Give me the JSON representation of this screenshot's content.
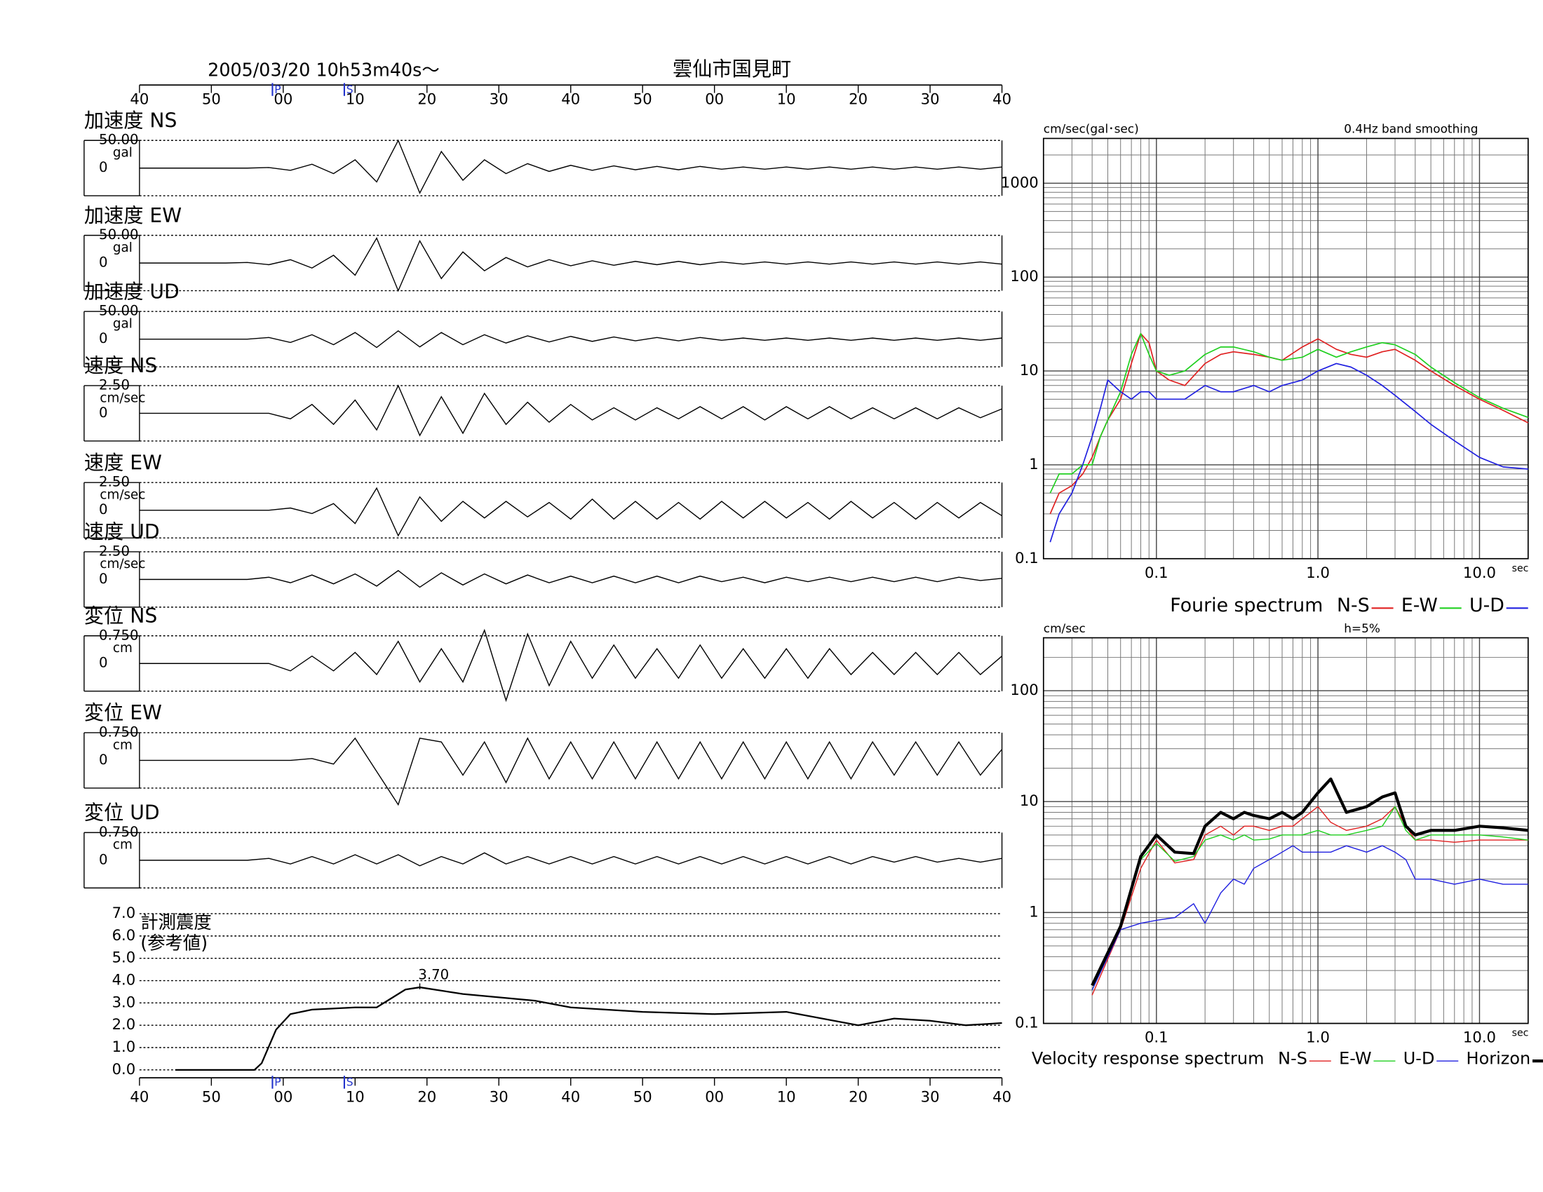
{
  "header": {
    "datetime": "2005/03/20  10h53m40s〜",
    "location": "雲仙市国見町"
  },
  "chart_data": [
    {
      "type": "waveform",
      "xlim": [
        40,
        160
      ],
      "xticks": [
        40,
        50,
        {
          "value": 60,
          "label": "00"
        },
        {
          "value": 70,
          "label": "10"
        },
        {
          "value": 80,
          "label": "20"
        },
        {
          "value": 90,
          "label": "30"
        },
        {
          "value": 100,
          "label": "40"
        },
        {
          "value": 110,
          "label": "50"
        },
        {
          "value": 120,
          "label": "00"
        },
        {
          "value": 130,
          "label": "10"
        },
        {
          "value": 140,
          "label": "20"
        },
        {
          "value": 150,
          "label": "30"
        },
        {
          "value": 160,
          "label": "40"
        }
      ],
      "phases": [
        {
          "value": 58.5,
          "label": "P"
        },
        {
          "value": 68.5,
          "label": "S"
        }
      ],
      "x": [
        40,
        43,
        46,
        49,
        52,
        55,
        58,
        61,
        64,
        67,
        70,
        73,
        76,
        79,
        82,
        85,
        88,
        91,
        94,
        97,
        100,
        103,
        106,
        109,
        112,
        115,
        118,
        121,
        124,
        127,
        130,
        133,
        136,
        139,
        142,
        145,
        148,
        151,
        154,
        157,
        160
      ],
      "series": [
        {
          "name": "加速度 NS",
          "unit": "gal",
          "color": "#000000",
          "ylim": [
            -50,
            50
          ],
          "yticks": [
            {
              "value": 50,
              "label": "50.00"
            },
            0
          ],
          "values": [
            0,
            0,
            0,
            0,
            0,
            0,
            1,
            -4,
            7,
            -10,
            15,
            -25,
            50,
            -45,
            30,
            -22,
            15,
            -10,
            8,
            -6,
            5,
            -4,
            4,
            -3,
            3,
            -3,
            3,
            -2,
            2,
            -2,
            2,
            -2,
            2,
            -2,
            2,
            -2,
            2,
            -2,
            2,
            -2,
            2
          ]
        },
        {
          "name": "加速度 EW",
          "unit": "gal",
          "color": "#000000",
          "ylim": [
            -50,
            50
          ],
          "yticks": [
            {
              "value": 50,
              "label": "50.00"
            },
            0
          ],
          "values": [
            0,
            0,
            0,
            0,
            0,
            1,
            -3,
            6,
            -9,
            14,
            -22,
            45,
            -50,
            40,
            -28,
            20,
            -14,
            10,
            -7,
            6,
            -5,
            4,
            -4,
            3,
            -3,
            3,
            -3,
            2,
            -2,
            2,
            -2,
            2,
            -2,
            2,
            -2,
            2,
            -2,
            2,
            -2,
            2,
            -2
          ]
        },
        {
          "name": "加速度 UD",
          "unit": "gal",
          "color": "#000000",
          "ylim": [
            -50,
            50
          ],
          "yticks": [
            {
              "value": 50,
              "label": "50.00"
            },
            0
          ],
          "values": [
            0,
            0,
            0,
            0,
            0,
            0,
            3,
            -6,
            8,
            -10,
            12,
            -15,
            15,
            -14,
            12,
            -10,
            8,
            -7,
            6,
            -5,
            5,
            -4,
            4,
            -3,
            3,
            -3,
            3,
            -2,
            2,
            -2,
            2,
            -2,
            2,
            -2,
            2,
            -2,
            2,
            -2,
            2,
            -2,
            2
          ]
        },
        {
          "name": "速度 NS",
          "unit": "cm/sec",
          "color": "#000000",
          "ylim": [
            -2.5,
            2.5
          ],
          "yticks": [
            {
              "value": 2.5,
              "label": "2.50"
            },
            0
          ],
          "values": [
            0,
            0,
            0,
            0,
            0,
            0,
            0,
            -0.5,
            0.8,
            -1,
            1.2,
            -1.5,
            2.5,
            -2,
            1.5,
            -1.8,
            1.8,
            -1,
            1,
            -0.8,
            0.8,
            -0.6,
            0.5,
            -0.6,
            0.5,
            -0.5,
            0.6,
            -0.5,
            0.6,
            -0.6,
            0.6,
            -0.5,
            0.6,
            -0.5,
            0.5,
            -0.5,
            0.5,
            -0.5,
            0.5,
            -0.4,
            0.4
          ]
        },
        {
          "name": "速度 EW",
          "unit": "cm/sec",
          "color": "#000000",
          "ylim": [
            -2.5,
            2.5
          ],
          "yticks": [
            {
              "value": 2.5,
              "label": "2.50"
            },
            0
          ],
          "values": [
            0,
            0,
            0,
            0,
            0,
            0,
            0,
            0.2,
            -0.3,
            0.6,
            -1.2,
            2,
            -2.3,
            1.2,
            -1,
            0.8,
            -0.7,
            0.8,
            -0.6,
            0.7,
            -0.8,
            1,
            -0.8,
            0.8,
            -0.8,
            0.7,
            -0.8,
            0.8,
            -0.7,
            0.8,
            -0.7,
            0.7,
            -0.8,
            0.8,
            -0.7,
            0.7,
            -0.8,
            0.7,
            -0.7,
            0.7,
            -0.5
          ]
        },
        {
          "name": "速度 UD",
          "unit": "cm/sec",
          "color": "#000000",
          "ylim": [
            -2.5,
            2.5
          ],
          "yticks": [
            {
              "value": 2.5,
              "label": "2.50"
            },
            0
          ],
          "values": [
            0,
            0,
            0,
            0,
            0,
            0,
            0.2,
            -0.3,
            0.4,
            -0.4,
            0.5,
            -0.6,
            0.8,
            -0.7,
            0.6,
            -0.5,
            0.5,
            -0.4,
            0.4,
            -0.3,
            0.3,
            -0.3,
            0.3,
            -0.3,
            0.3,
            -0.3,
            0.3,
            -0.2,
            0.2,
            -0.3,
            0.2,
            -0.2,
            0.2,
            -0.2,
            0.2,
            -0.2,
            0.2,
            -0.2,
            0.2,
            -0.1,
            0.1
          ]
        },
        {
          "name": "変位 NS",
          "unit": "cm",
          "color": "#000000",
          "ylim": [
            -0.75,
            0.75
          ],
          "yticks": [
            {
              "value": 0.75,
              "label": "0.750"
            },
            0
          ],
          "values": [
            0,
            0,
            0,
            0,
            0,
            0,
            0,
            -0.2,
            0.2,
            -0.2,
            0.3,
            -0.3,
            0.6,
            -0.5,
            0.4,
            -0.5,
            0.9,
            -1,
            0.8,
            -0.6,
            0.6,
            -0.4,
            0.5,
            -0.4,
            0.4,
            -0.4,
            0.5,
            -0.4,
            0.4,
            -0.4,
            0.4,
            -0.4,
            0.4,
            -0.3,
            0.3,
            -0.3,
            0.3,
            -0.3,
            0.3,
            -0.3,
            0.2
          ]
        },
        {
          "name": "変位 EW",
          "unit": "cm",
          "color": "#000000",
          "ylim": [
            -0.75,
            0.75
          ],
          "yticks": [
            {
              "value": 0.75,
              "label": "0.750"
            },
            0
          ],
          "values": [
            0,
            0,
            0,
            0,
            0,
            0,
            0,
            0,
            0.05,
            -0.1,
            0.6,
            -0.3,
            -1.2,
            0.6,
            0.5,
            -0.4,
            0.5,
            -0.6,
            0.6,
            -0.5,
            0.5,
            -0.5,
            0.5,
            -0.5,
            0.5,
            -0.5,
            0.5,
            -0.5,
            0.5,
            -0.5,
            0.5,
            -0.5,
            0.5,
            -0.5,
            0.5,
            -0.4,
            0.5,
            -0.4,
            0.5,
            -0.4,
            0.3
          ]
        },
        {
          "name": "変位 UD",
          "unit": "cm",
          "color": "#000000",
          "ylim": [
            -0.75,
            0.75
          ],
          "yticks": [
            {
              "value": 0.75,
              "label": "0.750"
            },
            0
          ],
          "values": [
            0,
            0,
            0,
            0,
            0,
            0,
            0.05,
            -0.1,
            0.1,
            -0.1,
            0.15,
            -0.1,
            0.15,
            -0.15,
            0.1,
            -0.1,
            0.2,
            -0.1,
            0.1,
            -0.1,
            0.1,
            -0.1,
            0.1,
            -0.1,
            0.1,
            -0.1,
            0.1,
            -0.1,
            0.1,
            -0.1,
            0.1,
            -0.1,
            0.1,
            -0.1,
            0.1,
            -0.05,
            0.1,
            -0.05,
            0.05,
            -0.05,
            0.05
          ]
        }
      ]
    },
    {
      "type": "line",
      "title": "計測震度",
      "subtitle": "(参考値)",
      "xlim": [
        40,
        160
      ],
      "xticks": [
        40,
        50,
        {
          "value": 60,
          "label": "00"
        },
        {
          "value": 70,
          "label": "10"
        },
        {
          "value": 80,
          "label": "20"
        },
        {
          "value": 90,
          "label": "30"
        },
        {
          "value": 100,
          "label": "40"
        },
        {
          "value": 110,
          "label": "50"
        },
        {
          "value": 120,
          "label": "00"
        },
        {
          "value": 130,
          "label": "10"
        },
        {
          "value": 140,
          "label": "20"
        },
        {
          "value": 150,
          "label": "30"
        },
        {
          "value": 160,
          "label": "40"
        }
      ],
      "phases": [
        {
          "value": 58.5,
          "label": "P"
        },
        {
          "value": 68.5,
          "label": "S"
        }
      ],
      "ylim": [
        0,
        7
      ],
      "yticks": [
        {
          "value": 0,
          "label": "0.0"
        },
        {
          "value": 1,
          "label": "1.0"
        },
        {
          "value": 2,
          "label": "2.0"
        },
        {
          "value": 3,
          "label": "3.0"
        },
        {
          "value": 4,
          "label": "4.0"
        },
        {
          "value": 5,
          "label": "5.0"
        },
        {
          "value": 6,
          "label": "6.0"
        },
        {
          "value": 7,
          "label": "7.0"
        }
      ],
      "grid": true,
      "color": "#000000",
      "x": [
        45,
        56,
        57,
        59,
        61,
        64,
        70,
        73,
        77,
        79,
        85,
        95,
        100,
        110,
        120,
        130,
        140,
        145,
        150,
        155,
        160
      ],
      "values": [
        0,
        0,
        0.3,
        1.8,
        2.5,
        2.7,
        2.8,
        2.8,
        3.6,
        3.7,
        3.4,
        3.1,
        2.8,
        2.6,
        2.5,
        2.6,
        2,
        2.3,
        2.2,
        2,
        2.1
      ],
      "annotation": {
        "x": 79,
        "y": 3.7,
        "label": "3.70"
      }
    },
    {
      "type": "loglog",
      "title": "Fourie spectrum",
      "y_label": "cm/sec(gal･sec)",
      "note": "0.4Hz band smoothing",
      "x_label": "sec",
      "xlim": [
        0.02,
        20
      ],
      "xticks": [
        0.1,
        {
          "value": 1,
          "label": "1.0"
        },
        {
          "value": 10,
          "label": "10.0"
        }
      ],
      "ylim": [
        0.1,
        3000
      ],
      "yticks": [
        0.1,
        1,
        10,
        100,
        1000
      ],
      "grid": true,
      "x": [
        0.022,
        0.025,
        0.03,
        0.035,
        0.04,
        0.045,
        0.05,
        0.06,
        0.07,
        0.08,
        0.09,
        0.1,
        0.12,
        0.15,
        0.2,
        0.25,
        0.3,
        0.4,
        0.5,
        0.6,
        0.8,
        1,
        1.3,
        1.6,
        2,
        2.5,
        3,
        4,
        5,
        7,
        10,
        14,
        20
      ],
      "series": [
        {
          "name": "N-S",
          "color": "#e02020",
          "values": [
            0.3,
            0.5,
            0.6,
            0.8,
            1.2,
            2,
            3,
            5,
            12,
            25,
            20,
            10,
            8,
            7,
            12,
            15,
            16,
            15,
            14,
            13,
            18,
            22,
            17,
            15,
            14,
            16,
            17,
            13,
            10,
            7,
            5,
            3.8,
            2.8
          ]
        },
        {
          "name": "E-W",
          "color": "#20d020",
          "values": [
            0.5,
            0.8,
            0.8,
            1,
            1,
            2,
            3,
            6,
            15,
            25,
            15,
            10,
            9,
            10,
            15,
            18,
            18,
            16,
            14,
            13,
            14,
            17,
            14,
            16,
            18,
            20,
            19,
            15,
            11,
            7.5,
            5.2,
            4,
            3.2
          ]
        },
        {
          "name": "U-D",
          "color": "#2020e0",
          "values": [
            0.15,
            0.3,
            0.5,
            1,
            2,
            4,
            8,
            6,
            5,
            6,
            6,
            5,
            5,
            5,
            7,
            6,
            6,
            7,
            6,
            7,
            8,
            10,
            12,
            11,
            9,
            7,
            5.5,
            3.7,
            2.7,
            1.8,
            1.2,
            0.95,
            0.9
          ]
        }
      ]
    },
    {
      "type": "loglog",
      "title": "Velocity response spectrum",
      "y_label": "cm/sec",
      "note": "h=5%",
      "x_label": "sec",
      "xlim": [
        0.02,
        20
      ],
      "xticks": [
        0.1,
        {
          "value": 1,
          "label": "1.0"
        },
        {
          "value": 10,
          "label": "10.0"
        }
      ],
      "ylim": [
        0.1,
        300
      ],
      "yticks": [
        0.1,
        1,
        10,
        100
      ],
      "grid": true,
      "x": [
        0.04,
        0.06,
        0.08,
        0.1,
        0.13,
        0.17,
        0.2,
        0.25,
        0.3,
        0.35,
        0.4,
        0.5,
        0.6,
        0.7,
        0.8,
        1,
        1.2,
        1.5,
        2,
        2.5,
        3,
        3.5,
        4,
        5,
        7,
        10,
        14,
        20
      ],
      "series": [
        {
          "name": "N-S",
          "color": "#e02020",
          "line_width": 1,
          "values": [
            0.18,
            0.7,
            2.5,
            4.5,
            2.8,
            3,
            5,
            6,
            5,
            6,
            6,
            5.5,
            6,
            6,
            7,
            9,
            6.5,
            5.5,
            6,
            7,
            9,
            6,
            4.5,
            4.5,
            4.3,
            4.5,
            4.5,
            4.5
          ]
        },
        {
          "name": "E-W",
          "color": "#20d020",
          "line_width": 1,
          "values": [
            0.2,
            0.75,
            3,
            4.2,
            2.9,
            3.2,
            4.5,
            5,
            4.5,
            5,
            4.5,
            4.6,
            5,
            5,
            5,
            5.5,
            5,
            5,
            5.5,
            6,
            9,
            5.5,
            4.5,
            5,
            5,
            5,
            4.8,
            4.5
          ]
        },
        {
          "name": "U-D",
          "color": "#2020e0",
          "line_width": 1,
          "values": [
            0.2,
            0.7,
            0.8,
            0.85,
            0.9,
            1.2,
            0.8,
            1.5,
            2,
            1.8,
            2.5,
            3,
            3.5,
            4,
            3.5,
            3.5,
            3.5,
            4,
            3.5,
            4,
            3.5,
            3,
            2,
            2,
            1.8,
            2,
            1.8,
            1.8
          ]
        },
        {
          "name": "Horizon",
          "color": "#000000",
          "line_width": 3,
          "values": [
            0.22,
            0.75,
            3.2,
            5,
            3.5,
            3.4,
            6,
            8,
            7,
            8,
            7.5,
            7,
            8,
            7,
            8,
            12,
            16,
            8,
            9,
            11,
            12,
            6,
            5,
            5.5,
            5.5,
            6,
            5.8,
            5.5
          ]
        }
      ]
    }
  ]
}
